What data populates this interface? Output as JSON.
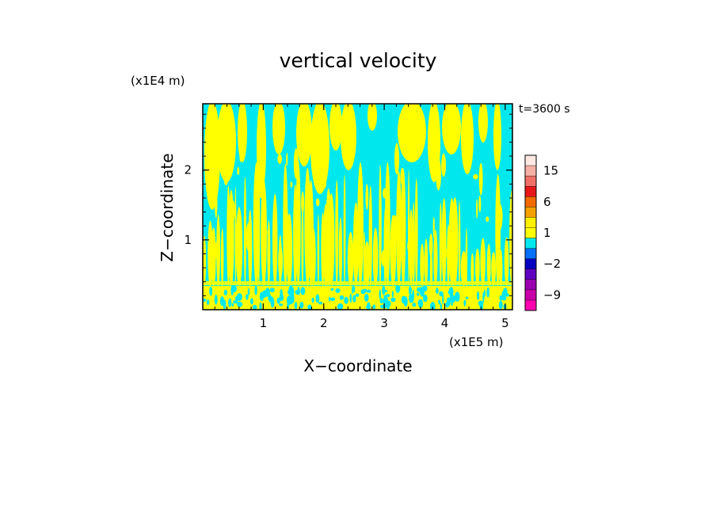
{
  "chart_data": {
    "type": "heatmap",
    "title": "vertical velocity",
    "xlabel": "X−coordinate",
    "ylabel": "Z−coordinate",
    "x_unit_label": "(x1E5 m)",
    "y_unit_label": "(x1E4 m)",
    "time_label": "t=3600 s",
    "xlim": [
      0,
      5.12
    ],
    "ylim": [
      0,
      2.95
    ],
    "x_ticks": [
      "1",
      "2",
      "3",
      "4",
      "5"
    ],
    "x_tick_values": [
      1,
      2,
      3,
      4,
      5
    ],
    "y_ticks": [
      "1",
      "2"
    ],
    "y_tick_values": [
      1,
      2
    ],
    "field_colors": {
      "background": "#00e8ee",
      "updraft": "#ffff00"
    },
    "colorbar": {
      "labels": [
        "15",
        "6",
        "1",
        "−2",
        "−9"
      ],
      "label_values": [
        15,
        6,
        1,
        -2,
        -9
      ],
      "levels": [
        {
          "value": 20,
          "color": "#fde8e2"
        },
        {
          "value": 15,
          "color": "#f7b0a6"
        },
        {
          "value": 10,
          "color": "#f07068"
        },
        {
          "value": 8,
          "color": "#e8181a"
        },
        {
          "value": 6,
          "color": "#f06a00"
        },
        {
          "value": 4,
          "color": "#f4a000"
        },
        {
          "value": 2,
          "color": "#fff000"
        },
        {
          "value": 1,
          "color": "#ffff00"
        },
        {
          "value": 0,
          "color": "#00e8ee"
        },
        {
          "value": -1,
          "color": "#0070ff"
        },
        {
          "value": -2,
          "color": "#0000c0"
        },
        {
          "value": -4,
          "color": "#6000c0"
        },
        {
          "value": -6,
          "color": "#9a00b0"
        },
        {
          "value": -9,
          "color": "#c800a8"
        },
        {
          "value": -12,
          "color": "#ff00b0"
        }
      ]
    }
  }
}
